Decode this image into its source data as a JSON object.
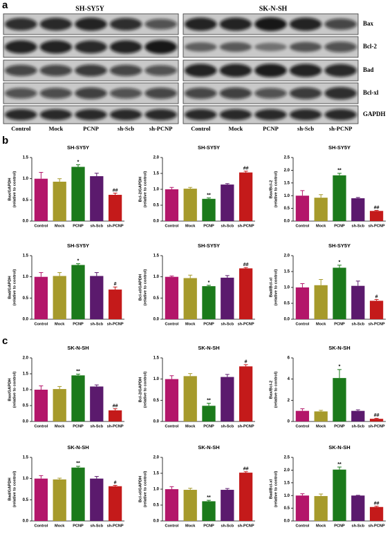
{
  "panels": [
    "a",
    "b",
    "c"
  ],
  "blots": {
    "left_title": "SH-SY5Y",
    "right_title": "SK-N-SH",
    "proteins": [
      "Bax",
      "Bcl-2",
      "Bad",
      "Bcl-xl",
      "GAPDH"
    ],
    "lanes": [
      "Control",
      "Mock",
      "PCNP",
      "sh-Scb",
      "sh-PCNP"
    ]
  },
  "bar_colors": [
    "#b3166a",
    "#a69a2b",
    "#1b7a1b",
    "#5b1a6d",
    "#c41a1a"
  ],
  "chart_data": [
    {
      "type": "bar",
      "title": "SH-SY5Y",
      "ylabel": [
        "Bax/GAPDH",
        "(relative to control)"
      ],
      "categories": [
        "Control",
        "Mock",
        "PCNP",
        "sh-Scb",
        "sh-PCNP"
      ],
      "values": [
        1.0,
        0.93,
        1.28,
        1.06,
        0.62
      ],
      "errors": [
        0.15,
        0.07,
        0.05,
        0.07,
        0.04
      ],
      "annotations": [
        null,
        null,
        "*",
        null,
        "##"
      ],
      "ylim": [
        0,
        1.5
      ],
      "yticks": [
        {
          "value": 0,
          "label": "0.0"
        },
        0.5,
        {
          "value": 1,
          "label": "1.0"
        },
        1.5
      ]
    },
    {
      "type": "bar",
      "title": "SH-SY5Y",
      "ylabel": [
        "Bcl-2/GAPDH",
        "(relative to control)"
      ],
      "categories": [
        "Control",
        "Mock",
        "PCNP",
        "sh-Scb",
        "sh-PCNP"
      ],
      "values": [
        1.0,
        1.02,
        0.7,
        1.15,
        1.53
      ],
      "errors": [
        0.06,
        0.04,
        0.03,
        0.03,
        0.04
      ],
      "annotations": [
        null,
        null,
        "**",
        null,
        "##"
      ],
      "ylim": [
        0,
        2
      ],
      "yticks": [
        {
          "value": 0,
          "label": "0.0"
        },
        0.5,
        {
          "value": 1,
          "label": "1.0"
        },
        1.5,
        {
          "value": 2,
          "label": "2.0"
        }
      ]
    },
    {
      "type": "bar",
      "title": "SH-SY5Y",
      "ylabel": [
        "Bax/Bcl-2",
        "(relative to control)"
      ],
      "categories": [
        "Control",
        "Mock",
        "PCNP",
        "sh-Scb",
        "sh-PCNP"
      ],
      "values": [
        1.0,
        0.92,
        1.8,
        0.9,
        0.4
      ],
      "errors": [
        0.2,
        0.12,
        0.08,
        0.03,
        0.02
      ],
      "annotations": [
        null,
        null,
        "**",
        null,
        "##"
      ],
      "ylim": [
        0,
        2.5
      ],
      "yticks": [
        {
          "value": 0,
          "label": "0.0"
        },
        0.5,
        {
          "value": 1,
          "label": "1.0"
        },
        1.5,
        {
          "value": 2,
          "label": "2.0"
        },
        2.5
      ]
    },
    {
      "type": "bar",
      "title": "SH-SY5Y",
      "ylabel": [
        "Bad/GAPDH",
        "(relative to control)"
      ],
      "categories": [
        "Control",
        "Mock",
        "PCNP",
        "sh-Scb",
        "sh-PCNP"
      ],
      "values": [
        1.0,
        1.02,
        1.28,
        1.02,
        0.7
      ],
      "errors": [
        0.1,
        0.08,
        0.03,
        0.08,
        0.06
      ],
      "annotations": [
        null,
        null,
        "*",
        null,
        "#"
      ],
      "ylim": [
        0,
        1.5
      ],
      "yticks": [
        {
          "value": 0,
          "label": "0.0"
        },
        0.5,
        {
          "value": 1,
          "label": "1.0"
        },
        1.5
      ]
    },
    {
      "type": "bar",
      "title": "SH-SY5Y",
      "ylabel": [
        "Bcl-xl/GAPDH",
        "(relative to control)"
      ],
      "categories": [
        "Control",
        "Mock",
        "PCNP",
        "sh-Scb",
        "sh-PCNP"
      ],
      "values": [
        1.0,
        0.97,
        0.78,
        0.98,
        1.2
      ],
      "errors": [
        0.02,
        0.07,
        0.02,
        0.05,
        0.02
      ],
      "annotations": [
        null,
        null,
        "*",
        null,
        "##"
      ],
      "ylim": [
        0,
        1.5
      ],
      "yticks": [
        {
          "value": 0,
          "label": "0.0"
        },
        0.5,
        {
          "value": 1,
          "label": "1.0"
        },
        1.5
      ]
    },
    {
      "type": "bar",
      "title": "SH-SY5Y",
      "ylabel": [
        "Bad/Bcl-xl",
        "(relative to control)"
      ],
      "categories": [
        "Control",
        "Mock",
        "PCNP",
        "sh-Scb",
        "sh-PCNP"
      ],
      "values": [
        1.0,
        1.07,
        1.62,
        1.05,
        0.58
      ],
      "errors": [
        0.12,
        0.18,
        0.08,
        0.15,
        0.04
      ],
      "annotations": [
        null,
        null,
        "*",
        null,
        "#"
      ],
      "ylim": [
        0,
        2
      ],
      "yticks": [
        {
          "value": 0,
          "label": "0.0"
        },
        0.5,
        {
          "value": 1,
          "label": "1.0"
        },
        1.5,
        {
          "value": 2,
          "label": "2.0"
        }
      ]
    },
    {
      "type": "bar",
      "title": "SK-N-SH",
      "ylabel": [
        "Bax/GAPDH",
        "(relative to control)"
      ],
      "categories": [
        "Control",
        "Mock",
        "PCNP",
        "sh-Scb",
        "sh-PCNP"
      ],
      "values": [
        1.0,
        1.02,
        1.45,
        1.1,
        0.35
      ],
      "errors": [
        0.12,
        0.08,
        0.04,
        0.05,
        0.05
      ],
      "annotations": [
        null,
        null,
        "**",
        null,
        "##"
      ],
      "ylim": [
        0,
        2
      ],
      "yticks": [
        {
          "value": 0,
          "label": "0.0"
        },
        0.5,
        {
          "value": 1,
          "label": "1.0"
        },
        1.5,
        {
          "value": 2,
          "label": "2.0"
        }
      ]
    },
    {
      "type": "bar",
      "title": "SK-N-SH",
      "ylabel": [
        "Bcl-2/GAPDH",
        "(relative to control)"
      ],
      "categories": [
        "Control",
        "Mock",
        "PCNP",
        "sh-Scb",
        "sh-PCNP"
      ],
      "values": [
        1.0,
        1.07,
        0.37,
        1.05,
        1.3
      ],
      "errors": [
        0.08,
        0.06,
        0.06,
        0.06,
        0.04
      ],
      "annotations": [
        null,
        null,
        "**",
        null,
        "#"
      ],
      "ylim": [
        0,
        1.5
      ],
      "yticks": [
        {
          "value": 0,
          "label": "0.0"
        },
        0.5,
        {
          "value": 1,
          "label": "1.0"
        },
        1.5
      ]
    },
    {
      "type": "bar",
      "title": "SK-N-SH",
      "ylabel": [
        "Bax/Bcl-2",
        "(relative to control)"
      ],
      "categories": [
        "Control",
        "Mock",
        "PCNP",
        "sh-Scb",
        "sh-PCNP"
      ],
      "values": [
        1.0,
        0.95,
        4.1,
        1.0,
        0.25
      ],
      "errors": [
        0.2,
        0.1,
        0.8,
        0.1,
        0.05
      ],
      "annotations": [
        null,
        null,
        "*",
        null,
        "##"
      ],
      "ylim": [
        0,
        6
      ],
      "yticks": [
        0,
        2,
        4,
        6
      ]
    },
    {
      "type": "bar",
      "title": "SK-N-SH",
      "ylabel": [
        "Bad/GAPDH",
        "(relative to control)"
      ],
      "categories": [
        "Control",
        "Mock",
        "PCNP",
        "sh-Scb",
        "sh-PCNP"
      ],
      "values": [
        1.0,
        0.98,
        1.26,
        1.0,
        0.82
      ],
      "errors": [
        0.07,
        0.03,
        0.03,
        0.05,
        0.02
      ],
      "annotations": [
        null,
        null,
        "**",
        null,
        "#"
      ],
      "ylim": [
        0,
        1.5
      ],
      "yticks": [
        {
          "value": 0,
          "label": "0.0"
        },
        0.5,
        {
          "value": 1,
          "label": "1.0"
        },
        1.5
      ]
    },
    {
      "type": "bar",
      "title": "SK-N-SH",
      "ylabel": [
        "Bcl-xl/GAPDH",
        "(relative to control)"
      ],
      "categories": [
        "Control",
        "Mock",
        "PCNP",
        "sh-Scb",
        "sh-PCNP"
      ],
      "values": [
        1.0,
        0.98,
        0.62,
        0.98,
        1.52
      ],
      "errors": [
        0.08,
        0.05,
        0.03,
        0.04,
        0.03
      ],
      "annotations": [
        null,
        null,
        "**",
        null,
        "##"
      ],
      "ylim": [
        0,
        2
      ],
      "yticks": [
        {
          "value": 0,
          "label": "0.0"
        },
        0.5,
        {
          "value": 1,
          "label": "1.0"
        },
        1.5,
        {
          "value": 2,
          "label": "2.0"
        }
      ]
    },
    {
      "type": "bar",
      "title": "SK-N-SH",
      "ylabel": [
        "Bad/Bcl-xl",
        "(relative to control)"
      ],
      "categories": [
        "Control",
        "Mock",
        "PCNP",
        "sh-Scb",
        "sh-PCNP"
      ],
      "values": [
        1.0,
        0.98,
        2.02,
        1.0,
        0.55
      ],
      "errors": [
        0.07,
        0.08,
        0.1,
        0.01,
        0.03
      ],
      "annotations": [
        null,
        null,
        "**",
        null,
        "##"
      ],
      "ylim": [
        0,
        2.5
      ],
      "yticks": [
        {
          "value": 0,
          "label": "0.0"
        },
        0.5,
        {
          "value": 1,
          "label": "1.0"
        },
        1.5,
        {
          "value": 2,
          "label": "2.0"
        },
        2.5
      ]
    }
  ]
}
